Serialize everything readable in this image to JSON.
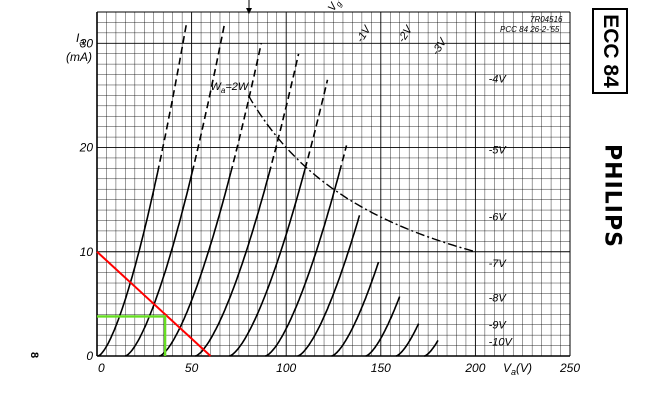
{
  "chart_data": {
    "type": "line",
    "ref_code": "7R04516",
    "ref_note": "PCC 84 26-2-'55",
    "ylabel_1": "I",
    "ylabel_sub": "a",
    "ylabel_2": "(mA)",
    "xlabel_1": "V",
    "xlabel_sub": "a",
    "xlabel_2": "(V)",
    "xlim": [
      0,
      250
    ],
    "ylim": [
      0,
      33
    ],
    "xticks": [
      "0",
      "50",
      "100",
      "150",
      "200",
      "250"
    ],
    "yticks": [
      "0",
      "10",
      "20",
      "30"
    ],
    "grid": true,
    "series": [
      {
        "name": "Vg=0V",
        "label_prefix": "V",
        "label_sub": "g",
        "label_suffix": "=0V",
        "cutoff": 0.6,
        "k": 0.1,
        "reach": 32,
        "label_at": [
          125,
          33
        ]
      },
      {
        "name": "-1V",
        "label": "-1V",
        "cutoff": 15,
        "k": 0.084,
        "reach": 32,
        "label_at": [
          140,
          30
        ]
      },
      {
        "name": "-2V",
        "label": "-2V",
        "cutoff": 33,
        "k": 0.076,
        "reach": 30,
        "label_at": [
          162,
          30
        ]
      },
      {
        "name": "-3V",
        "label": "-3V",
        "cutoff": 52,
        "k": 0.072,
        "reach": 29,
        "label_at": [
          180,
          28.8
        ]
      },
      {
        "name": "-4V",
        "label": "-4V",
        "cutoff": 70,
        "k": 0.071,
        "reach": 26.5,
        "label_at": [
          207,
          26.6
        ]
      },
      {
        "name": "-5V",
        "label": "-5V",
        "cutoff": 89,
        "k": 0.072,
        "reach": 20.2,
        "label_at": [
          207,
          19.8
        ]
      },
      {
        "name": "-6V",
        "label": "-6V",
        "cutoff": 106,
        "k": 0.072,
        "reach": 13.5,
        "label_at": [
          207,
          13.4
        ]
      },
      {
        "name": "-7V",
        "label": "-7V",
        "cutoff": 124,
        "k": 0.073,
        "reach": 9.0,
        "label_at": [
          207,
          8.9
        ]
      },
      {
        "name": "-8V",
        "label": "-8V",
        "cutoff": 142,
        "k": 0.075,
        "reach": 5.7,
        "label_at": [
          207,
          5.6
        ]
      },
      {
        "name": "-9V",
        "label": "-9V",
        "cutoff": 158,
        "k": 0.075,
        "reach": 3.1,
        "label_at": [
          207,
          3.0
        ]
      },
      {
        "name": "-10V",
        "label": "-10V",
        "cutoff": 173,
        "k": 0.077,
        "reach": 1.5,
        "label_at": [
          207,
          1.4
        ]
      }
    ],
    "dash_from_ma": 18,
    "power_curve": {
      "name": "Wa=2W",
      "label_prefix": "W",
      "label_sub": "a",
      "label_suffix": "=2W",
      "watts": 2,
      "x_range": [
        80,
        200
      ],
      "label_at": [
        60,
        25.5
      ]
    },
    "load_line": {
      "color": "#ff0000",
      "points": [
        [
          0,
          10
        ],
        [
          60,
          0
        ]
      ]
    },
    "operating_point": {
      "color": "#66dd22",
      "points": [
        [
          0,
          3.8
        ],
        [
          36,
          3.8
        ],
        [
          36,
          0
        ]
      ]
    }
  },
  "side_marker": "8",
  "tube_type": "ECC 84",
  "brand": "PHILIPS"
}
